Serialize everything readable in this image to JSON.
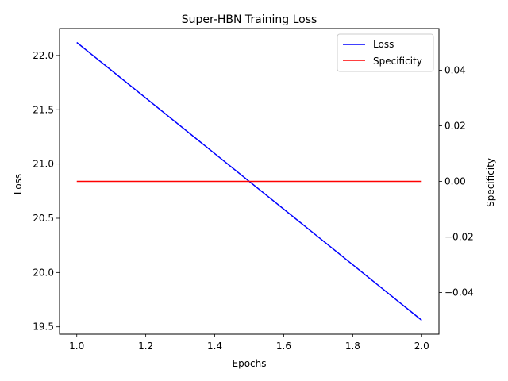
{
  "chart_data": {
    "type": "line",
    "title": "Super-HBN Training Loss",
    "xlabel": "Epochs",
    "ylabel_left": "Loss",
    "ylabel_right": "Specificity",
    "x": [
      1.0,
      2.0
    ],
    "xlim": [
      0.95,
      2.05
    ],
    "x_ticks": [
      1.0,
      1.2,
      1.4,
      1.6,
      1.8,
      2.0
    ],
    "x_tick_labels": [
      "1.0",
      "1.2",
      "1.4",
      "1.6",
      "1.8",
      "2.0"
    ],
    "y_left_lim": [
      19.432,
      22.248
    ],
    "y_left_ticks": [
      19.5,
      20.0,
      20.5,
      21.0,
      21.5,
      22.0
    ],
    "y_left_tick_labels": [
      "19.5",
      "20.0",
      "20.5",
      "21.0",
      "21.5",
      "22.0"
    ],
    "y_right_lim": [
      -0.055,
      0.055
    ],
    "y_right_ticks": [
      -0.04,
      -0.02,
      0.0,
      0.02,
      0.04
    ],
    "y_right_tick_labels": [
      "−0.04",
      "−0.02",
      "0.00",
      "0.02",
      "0.04"
    ],
    "series": [
      {
        "name": "Loss",
        "axis": "left",
        "color": "#0000ff",
        "values": [
          22.12,
          19.56
        ]
      },
      {
        "name": "Specificity",
        "axis": "right",
        "color": "#ff0000",
        "values": [
          0.0,
          0.0
        ]
      }
    ],
    "legend": {
      "position": "upper-right"
    },
    "grid": false
  }
}
